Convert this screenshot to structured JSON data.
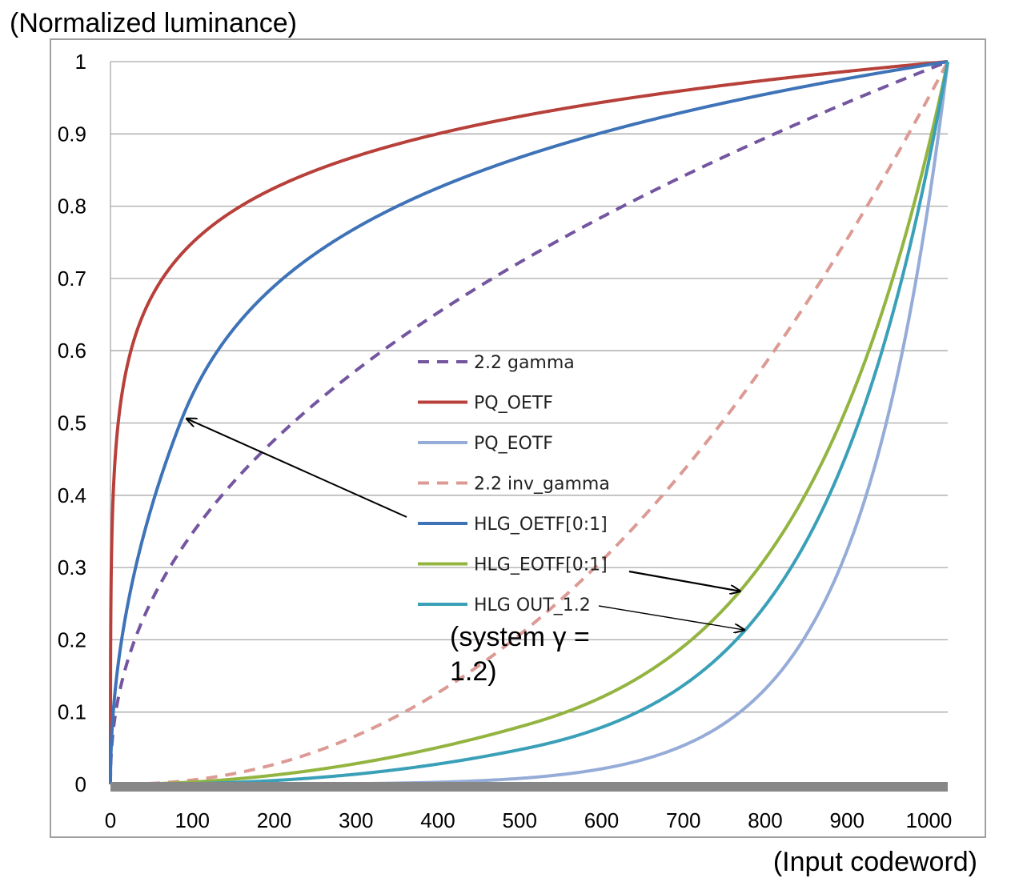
{
  "chart_data": {
    "type": "line",
    "ylabel": "(Normalized luminance)",
    "xlabel": "(Input codeword)",
    "xlim": [
      0,
      1023
    ],
    "ylim": [
      0,
      1
    ],
    "xticks": [
      "0",
      "100",
      "200",
      "300",
      "400",
      "500",
      "600",
      "700",
      "800",
      "900",
      "1000"
    ],
    "yticks": [
      "0",
      "0.1",
      "0.2",
      "0.3",
      "0.4",
      "0.5",
      "0.6",
      "0.7",
      "0.8",
      "0.9",
      "1"
    ],
    "grid": "horizontal",
    "legend_position": "center",
    "series": [
      {
        "name": "2.2 gamma",
        "color": "#7456a0",
        "dashed": true,
        "fn": "gamma"
      },
      {
        "name": "PQ_OETF",
        "color": "#b8403a",
        "dashed": false,
        "fn": "pq_oetf"
      },
      {
        "name": "PQ_EOTF",
        "color": "#96acd8",
        "dashed": false,
        "fn": "pq_eotf"
      },
      {
        "name": "2.2 inv_gamma",
        "color": "#dc9a94",
        "dashed": true,
        "fn": "inv_gamma"
      },
      {
        "name": "HLG_OETF[0:1]",
        "color": "#3f73b8",
        "dashed": false,
        "fn": "hlg_oetf"
      },
      {
        "name": "HLG_EOTF[0:1]",
        "color": "#93b440",
        "dashed": false,
        "fn": "hlg_eotf"
      },
      {
        "name": "HLG OUT_1.2",
        "color": "#3aa0b8",
        "dashed": false,
        "fn": "hlg_out"
      }
    ],
    "annotation": {
      "line1": "(system γ =",
      "line2": "1.2)"
    }
  }
}
